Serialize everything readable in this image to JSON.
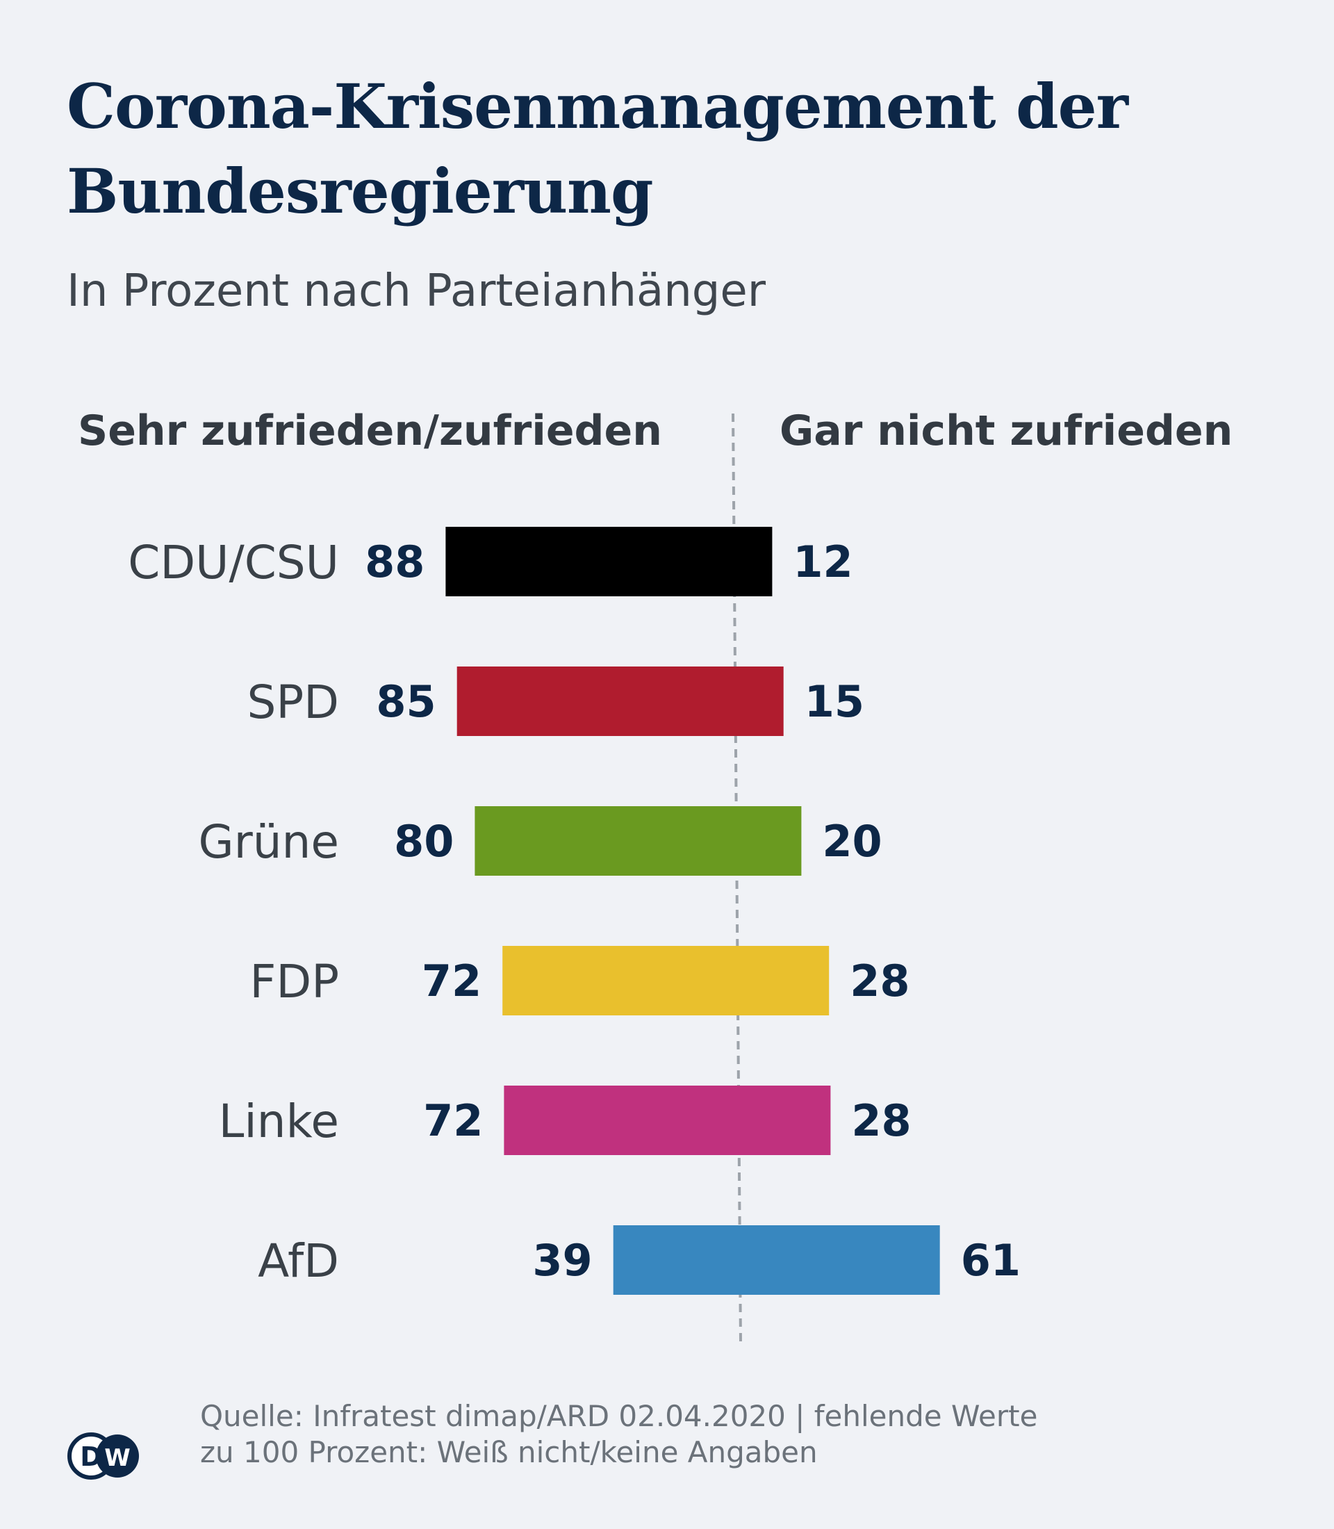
{
  "title": "Corona-Krisenmanagement der Bundesregierung",
  "subtitle": "In Prozent nach Parteianhänger",
  "source_lines": [
    "Quelle: Infratest dimap/ARD 02.04.2020 | fehlende Werte",
    "zu 100 Prozent: Weiß nicht/keine Angaben"
  ],
  "logo_text": "DW",
  "colors": {
    "title": "#0d2747",
    "values": "#0d2747",
    "divider": "#9da3aa"
  },
  "chart_data": {
    "type": "bar",
    "orientation": "horizontal-diverging",
    "column_headers": {
      "left": "Sehr zufrieden/zufrieden",
      "right": "Gar nicht zufrieden"
    },
    "categories": [
      "CDU/CSU",
      "SPD",
      "Grüne",
      "FDP",
      "Linke",
      "AfD"
    ],
    "series": [
      {
        "name": "Sehr zufrieden/zufrieden",
        "values": [
          88,
          85,
          80,
          72,
          72,
          39
        ]
      },
      {
        "name": "Gar nicht zufrieden",
        "values": [
          12,
          15,
          20,
          28,
          28,
          61
        ]
      }
    ],
    "bar_colors": [
      "#000000",
      "#b01c2e",
      "#6a9a20",
      "#e9c02d",
      "#c0317e",
      "#3887bf"
    ],
    "xlim": [
      -100,
      100
    ],
    "grid": false,
    "legend": "column-headers-top"
  }
}
